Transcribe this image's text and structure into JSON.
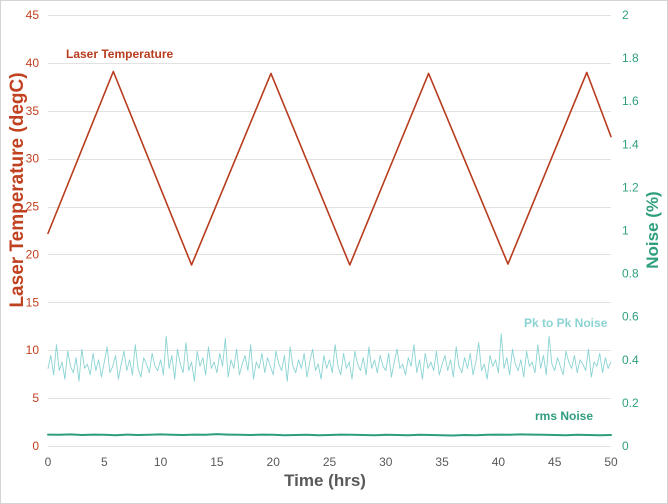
{
  "chart_data": {
    "type": "line",
    "xlabel": "Time (hrs)",
    "ylabel": "Laser Temperature (degC)",
    "y2label": "Noise (%)",
    "xlim": [
      0,
      50
    ],
    "ylim": [
      0,
      45
    ],
    "y2lim": [
      0,
      2
    ],
    "xticks": [
      0,
      5,
      10,
      15,
      20,
      25,
      30,
      35,
      40,
      45,
      50
    ],
    "yticks": [
      0,
      5,
      10,
      15,
      20,
      25,
      30,
      35,
      40,
      45
    ],
    "y2ticks": [
      0,
      0.2,
      0.4,
      0.6,
      0.8,
      1,
      1.2,
      1.4,
      1.6,
      1.8,
      2
    ],
    "grid": "horizontal",
    "colors": {
      "left_axis": "#C0411F",
      "right_axis": "#2F9E7E",
      "x_axis": "#595959",
      "grid": "#E2E2E2"
    },
    "series": [
      {
        "name": "Laser Temperature",
        "axis": "left",
        "color": "#B83C1E",
        "x": [
          0,
          5.8,
          12.75,
          19.8,
          26.8,
          33.8,
          40.85,
          47.85,
          50
        ],
        "y": [
          22.2,
          39.1,
          18.9,
          38.9,
          18.9,
          38.9,
          19,
          39,
          32.3
        ]
      },
      {
        "name": "Pk to Pk Noise",
        "axis": "right",
        "color": "#8CD3D3",
        "x": [
          0,
          0.25,
          0.5,
          0.75,
          1,
          1.25,
          1.5,
          1.75,
          2,
          2.25,
          2.5,
          2.75,
          3,
          3.25,
          3.5,
          3.75,
          4,
          4.25,
          4.5,
          4.75,
          5,
          5.25,
          5.5,
          5.75,
          6,
          6.25,
          6.5,
          6.75,
          7,
          7.25,
          7.5,
          7.75,
          8,
          8.25,
          8.5,
          8.75,
          9,
          9.25,
          9.5,
          9.75,
          10,
          10.25,
          10.5,
          10.75,
          11,
          11.25,
          11.5,
          11.75,
          12,
          12.25,
          12.5,
          12.75,
          13,
          13.25,
          13.5,
          13.75,
          14,
          14.25,
          14.5,
          14.75,
          15,
          15.25,
          15.5,
          15.75,
          16,
          16.25,
          16.5,
          16.75,
          17,
          17.25,
          17.5,
          17.75,
          18,
          18.25,
          18.5,
          18.75,
          19,
          19.25,
          19.5,
          19.75,
          20,
          20.25,
          20.5,
          20.75,
          21,
          21.25,
          21.5,
          21.75,
          22,
          22.25,
          22.5,
          22.75,
          23,
          23.25,
          23.5,
          23.75,
          24,
          24.25,
          24.5,
          24.75,
          25,
          25.25,
          25.5,
          25.75,
          26,
          26.25,
          26.5,
          26.75,
          27,
          27.25,
          27.5,
          27.75,
          28,
          28.25,
          28.5,
          28.75,
          29,
          29.25,
          29.5,
          29.75,
          30,
          30.25,
          30.5,
          30.75,
          31,
          31.25,
          31.5,
          31.75,
          32,
          32.25,
          32.5,
          32.75,
          33,
          33.25,
          33.5,
          33.75,
          34,
          34.25,
          34.5,
          34.75,
          35,
          35.25,
          35.5,
          35.75,
          36,
          36.25,
          36.5,
          36.75,
          37,
          37.25,
          37.5,
          37.75,
          38,
          38.25,
          38.5,
          38.75,
          39,
          39.25,
          39.5,
          39.75,
          40,
          40.25,
          40.5,
          40.75,
          41,
          41.25,
          41.5,
          41.75,
          42,
          42.25,
          42.5,
          42.75,
          43,
          43.25,
          43.5,
          43.75,
          44,
          44.25,
          44.5,
          44.75,
          45,
          45.25,
          45.5,
          45.75,
          46,
          46.25,
          46.5,
          46.75,
          47,
          47.25,
          47.5,
          47.75,
          48,
          48.25,
          48.5,
          48.75,
          49,
          49.25,
          49.5,
          49.75,
          50
        ],
        "y": [
          0.36,
          0.42,
          0.33,
          0.47,
          0.35,
          0.39,
          0.31,
          0.44,
          0.37,
          0.34,
          0.41,
          0.3,
          0.45,
          0.36,
          0.38,
          0.33,
          0.43,
          0.35,
          0.4,
          0.32,
          0.39,
          0.46,
          0.34,
          0.37,
          0.42,
          0.31,
          0.38,
          0.44,
          0.35,
          0.4,
          0.33,
          0.47,
          0.36,
          0.32,
          0.41,
          0.38,
          0.34,
          0.43,
          0.37,
          0.35,
          0.4,
          0.33,
          0.51,
          0.36,
          0.42,
          0.31,
          0.45,
          0.38,
          0.34,
          0.48,
          0.35,
          0.39,
          0.3,
          0.44,
          0.37,
          0.41,
          0.33,
          0.46,
          0.36,
          0.39,
          0.34,
          0.43,
          0.37,
          0.5,
          0.32,
          0.4,
          0.36,
          0.45,
          0.33,
          0.38,
          0.42,
          0.35,
          0.47,
          0.31,
          0.39,
          0.36,
          0.43,
          0.34,
          0.41,
          0.37,
          0.33,
          0.44,
          0.38,
          0.35,
          0.42,
          0.3,
          0.46,
          0.37,
          0.34,
          0.4,
          0.36,
          0.43,
          0.32,
          0.39,
          0.45,
          0.35,
          0.38,
          0.31,
          0.42,
          0.36,
          0.4,
          0.34,
          0.47,
          0.37,
          0.33,
          0.43,
          0.36,
          0.39,
          0.31,
          0.44,
          0.38,
          0.35,
          0.41,
          0.33,
          0.46,
          0.36,
          0.4,
          0.34,
          0.42,
          0.37,
          0.35,
          0.43,
          0.32,
          0.39,
          0.45,
          0.36,
          0.38,
          0.33,
          0.41,
          0.37,
          0.47,
          0.34,
          0.4,
          0.31,
          0.43,
          0.36,
          0.39,
          0.35,
          0.44,
          0.33,
          0.38,
          0.42,
          0.35,
          0.4,
          0.32,
          0.46,
          0.37,
          0.34,
          0.41,
          0.36,
          0.43,
          0.33,
          0.39,
          0.48,
          0.35,
          0.38,
          0.31,
          0.42,
          0.37,
          0.4,
          0.34,
          0.52,
          0.36,
          0.41,
          0.33,
          0.45,
          0.38,
          0.35,
          0.4,
          0.32,
          0.44,
          0.37,
          0.39,
          0.34,
          0.47,
          0.36,
          0.42,
          0.33,
          0.51,
          0.38,
          0.35,
          0.41,
          0.37,
          0.33,
          0.44,
          0.39,
          0.36,
          0.42,
          0.34,
          0.4,
          0.38,
          0.35,
          0.45,
          0.32,
          0.39,
          0.37,
          0.43,
          0.34,
          0.41,
          0.36,
          0.39
        ]
      },
      {
        "name": "rms Noise",
        "axis": "right",
        "color": "#2F9E7E",
        "x": [
          0,
          1,
          2,
          3,
          4,
          5,
          6,
          7,
          8,
          9,
          10,
          11,
          12,
          13,
          14,
          15,
          16,
          17,
          18,
          19,
          20,
          21,
          22,
          23,
          24,
          25,
          26,
          27,
          28,
          29,
          30,
          31,
          32,
          33,
          34,
          35,
          36,
          37,
          38,
          39,
          40,
          41,
          42,
          43,
          44,
          45,
          46,
          47,
          48,
          49,
          50
        ],
        "y": [
          0.053,
          0.052,
          0.054,
          0.051,
          0.053,
          0.052,
          0.05,
          0.053,
          0.051,
          0.052,
          0.054,
          0.052,
          0.051,
          0.053,
          0.052,
          0.055,
          0.053,
          0.052,
          0.051,
          0.053,
          0.052,
          0.05,
          0.051,
          0.052,
          0.05,
          0.051,
          0.053,
          0.052,
          0.051,
          0.05,
          0.052,
          0.051,
          0.05,
          0.052,
          0.051,
          0.05,
          0.049,
          0.051,
          0.05,
          0.052,
          0.053,
          0.052,
          0.054,
          0.053,
          0.052,
          0.051,
          0.05,
          0.052,
          0.051,
          0.05,
          0.051
        ]
      }
    ]
  }
}
